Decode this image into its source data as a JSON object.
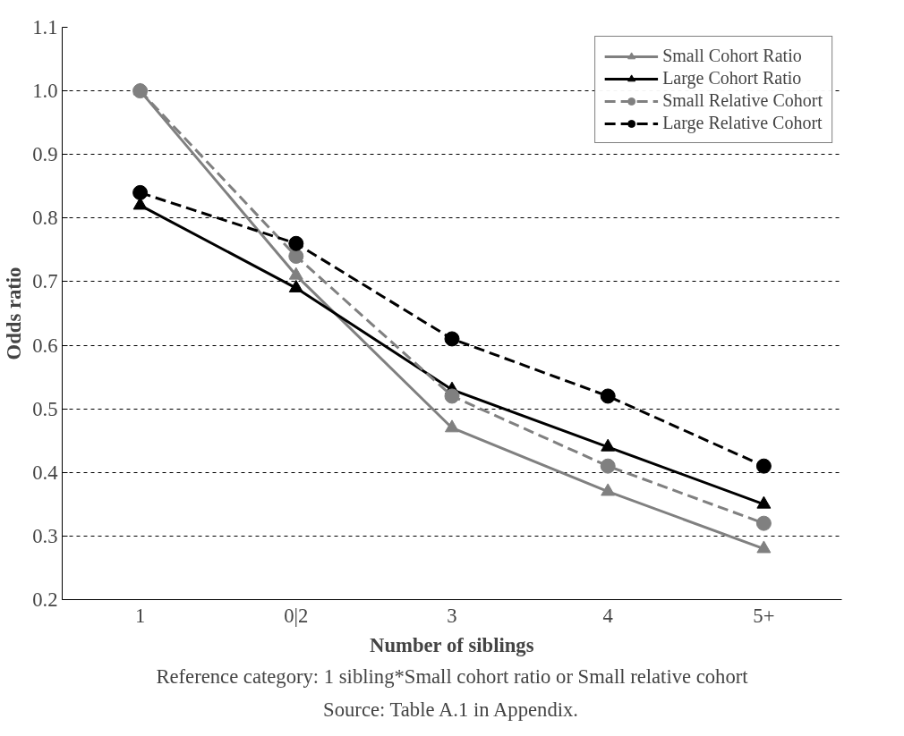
{
  "chart_data": {
    "type": "line",
    "xlabel": "Number of siblings",
    "ylabel": "Odds ratio",
    "categories": [
      "1",
      "0|2",
      "3",
      "4",
      "5+"
    ],
    "ylim": [
      0.2,
      1.1
    ],
    "yticks": [
      0.2,
      0.3,
      0.4,
      0.5,
      0.6,
      0.7,
      0.8,
      0.9,
      {
        "value": 1.0,
        "label": "1.0"
      },
      1.1
    ],
    "grid": "y",
    "legend": "top right",
    "series": [
      {
        "name": "Small Cohort Ratio",
        "color": "#808080",
        "marker": "triangle",
        "line_style": "solid",
        "values": [
          1.0,
          0.71,
          0.47,
          0.37,
          0.28
        ]
      },
      {
        "name": "Large Cohort Ratio",
        "color": "#000000",
        "marker": "triangle",
        "line_style": "solid",
        "values": [
          0.82,
          0.69,
          0.53,
          0.44,
          0.35
        ]
      },
      {
        "name": "Small Relative Cohort",
        "color": "#808080",
        "marker": "circle",
        "line_style": "dashed",
        "values": [
          1.0,
          0.74,
          0.52,
          0.41,
          0.32
        ]
      },
      {
        "name": "Large Relative Cohort",
        "color": "#000000",
        "marker": "circle",
        "line_style": "dashed",
        "values": [
          0.84,
          0.76,
          0.61,
          0.52,
          0.41
        ]
      }
    ],
    "annotations": [
      "Reference category: 1 sibling*Small cohort ratio or Small relative cohort",
      "Source: Table A.1 in Appendix."
    ]
  }
}
